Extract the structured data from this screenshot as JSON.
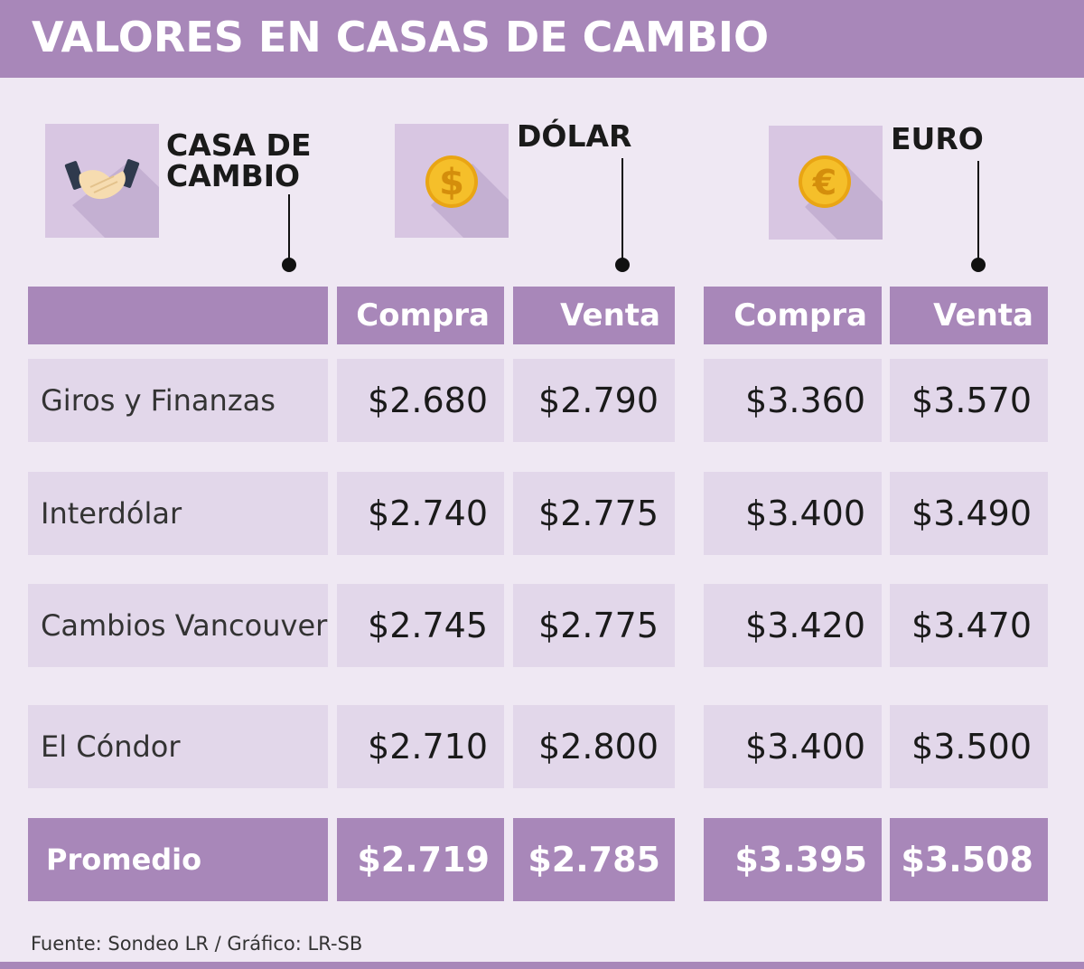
{
  "title": "VALORES EN CASAS DE CAMBIO",
  "headers": {
    "casa_line1": "CASA DE",
    "casa_line2": "CAMBIO",
    "dolar": "DÓLAR",
    "euro": "EURO"
  },
  "icons": {
    "casa": "handshake-icon",
    "dolar": "dollar-coin-icon",
    "euro": "euro-coin-icon"
  },
  "columns": {
    "dolar_compra": "Compra",
    "dolar_venta": "Venta",
    "euro_compra": "Compra",
    "euro_venta": "Venta"
  },
  "rows": [
    {
      "name": "Giros y Finanzas",
      "dolar_compra": "$2.680",
      "dolar_venta": "$2.790",
      "euro_compra": "$3.360",
      "euro_venta": "$3.570"
    },
    {
      "name": "Interdólar",
      "dolar_compra": "$2.740",
      "dolar_venta": "$2.775",
      "euro_compra": "$3.400",
      "euro_venta": "$3.490"
    },
    {
      "name": "Cambios Vancouver",
      "dolar_compra": "$2.745",
      "dolar_venta": "$2.775",
      "euro_compra": "$3.420",
      "euro_venta": "$3.470"
    },
    {
      "name": "El Cóndor",
      "dolar_compra": "$2.710",
      "dolar_venta": "$2.800",
      "euro_compra": "$3.400",
      "euro_venta": "$3.500"
    }
  ],
  "average": {
    "name": "Promedio",
    "dolar_compra": "$2.719",
    "dolar_venta": "$2.785",
    "euro_compra": "$3.395",
    "euro_venta": "$3.508"
  },
  "source": "Fuente: Sondeo LR / Gráfico: LR-SB",
  "colors": {
    "accent": "#a887b9",
    "background": "#efe8f3",
    "cell": "#e2d7ea",
    "icon_box": "#d8c6e2",
    "coin": "#f2b01e"
  },
  "chart_data": {
    "type": "table",
    "title": "VALORES EN CASAS DE CAMBIO",
    "columns": [
      "CASA DE CAMBIO",
      "DÓLAR Compra",
      "DÓLAR Venta",
      "EURO Compra",
      "EURO Venta"
    ],
    "rows": [
      [
        "Giros y Finanzas",
        2680,
        2790,
        3360,
        3570
      ],
      [
        "Interdólar",
        2740,
        2775,
        3400,
        3490
      ],
      [
        "Cambios Vancouver",
        2745,
        2775,
        3420,
        3470
      ],
      [
        "El Cóndor",
        2710,
        2800,
        3400,
        3500
      ],
      [
        "Promedio",
        2719,
        2785,
        3395,
        3508
      ]
    ]
  }
}
